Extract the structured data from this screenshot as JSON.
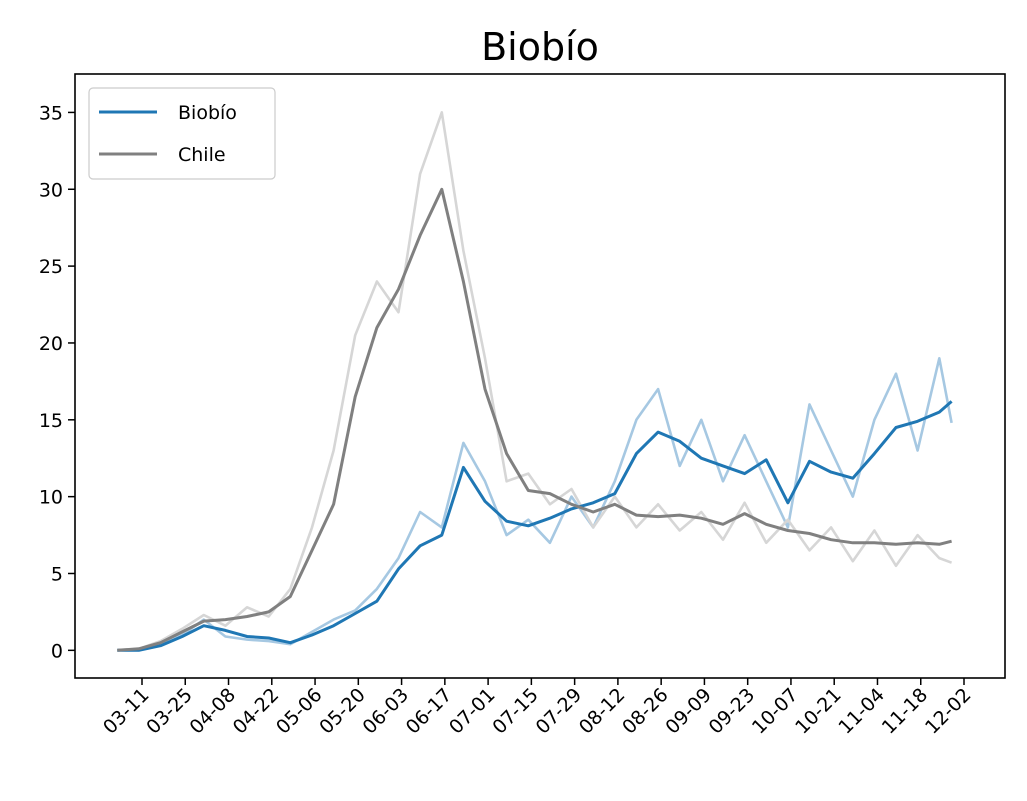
{
  "chart_data": {
    "type": "line",
    "title": "Biobío",
    "xlabel": "",
    "ylabel": "",
    "x_tick_labels": [
      "03-11",
      "03-25",
      "04-08",
      "04-22",
      "05-06",
      "05-20",
      "06-03",
      "06-17",
      "07-01",
      "07-15",
      "07-29",
      "08-12",
      "08-26",
      "09-09",
      "09-23",
      "10-07",
      "10-21",
      "11-04",
      "11-18",
      "12-02"
    ],
    "yticks": [
      0,
      5,
      10,
      15,
      20,
      25,
      30,
      35
    ],
    "ylim": [
      -1.8,
      37.5
    ],
    "legend": {
      "position": "top-left",
      "entries": [
        "Biobío",
        "Chile"
      ]
    },
    "grid": false,
    "x": [
      "03-03",
      "03-10",
      "03-17",
      "03-24",
      "03-31",
      "04-07",
      "04-14",
      "04-21",
      "04-28",
      "05-05",
      "05-12",
      "05-19",
      "05-26",
      "06-02",
      "06-09",
      "06-16",
      "06-23",
      "06-30",
      "07-07",
      "07-14",
      "07-21",
      "07-28",
      "08-04",
      "08-11",
      "08-18",
      "08-25",
      "09-01",
      "09-08",
      "09-15",
      "09-22",
      "09-29",
      "10-06",
      "10-13",
      "10-20",
      "10-27",
      "11-03",
      "11-10",
      "11-17",
      "11-24",
      "11-28"
    ],
    "series": [
      {
        "name": "Biobío",
        "color": "#1f77b4",
        "raw_color": "#a6c8e2",
        "values": [
          0.0,
          0.0,
          0.3,
          0.9,
          1.6,
          1.3,
          0.9,
          0.8,
          0.5,
          1.0,
          1.6,
          2.4,
          3.2,
          5.3,
          6.8,
          7.5,
          11.9,
          9.7,
          8.4,
          8.1,
          8.6,
          9.2,
          9.6,
          10.2,
          12.8,
          14.2,
          13.6,
          12.5,
          12.0,
          11.5,
          12.4,
          9.6,
          12.3,
          11.6,
          11.2,
          12.8,
          14.5,
          14.9,
          15.5,
          16.2
        ],
        "raw_values": [
          0.0,
          0.0,
          0.5,
          1.0,
          2.0,
          0.9,
          0.7,
          0.6,
          0.4,
          1.2,
          2.0,
          2.6,
          4.0,
          6.0,
          9.0,
          8.0,
          13.5,
          11.0,
          7.5,
          8.5,
          7.0,
          10.0,
          8.0,
          11.0,
          15.0,
          17.0,
          12.0,
          15.0,
          11.0,
          14.0,
          11.0,
          8.0,
          16.0,
          13.0,
          10.0,
          15.0,
          18.0,
          13.0,
          19.0,
          14.8
        ]
      },
      {
        "name": "Chile",
        "color": "#808080",
        "raw_color": "#d6d6d6",
        "values": [
          0.0,
          0.1,
          0.5,
          1.2,
          1.9,
          2.0,
          2.2,
          2.5,
          3.5,
          6.5,
          9.5,
          16.5,
          21.0,
          23.5,
          27.0,
          30.0,
          24.0,
          17.0,
          12.8,
          10.4,
          10.2,
          9.5,
          9.0,
          9.5,
          8.8,
          8.7,
          8.8,
          8.6,
          8.2,
          8.9,
          8.2,
          7.8,
          7.6,
          7.2,
          7.0,
          7.0,
          6.9,
          7.0,
          6.9,
          7.1
        ],
        "raw_values": [
          0.0,
          0.1,
          0.6,
          1.4,
          2.3,
          1.6,
          2.8,
          2.2,
          4.0,
          8.0,
          13.0,
          20.5,
          24.0,
          22.0,
          31.0,
          35.0,
          26.0,
          19.0,
          11.0,
          11.5,
          9.5,
          10.5,
          8.0,
          10.0,
          8.0,
          9.5,
          7.8,
          9.0,
          7.2,
          9.6,
          7.0,
          8.5,
          6.5,
          8.0,
          5.8,
          7.8,
          5.5,
          7.5,
          6.0,
          5.7
        ]
      }
    ]
  }
}
